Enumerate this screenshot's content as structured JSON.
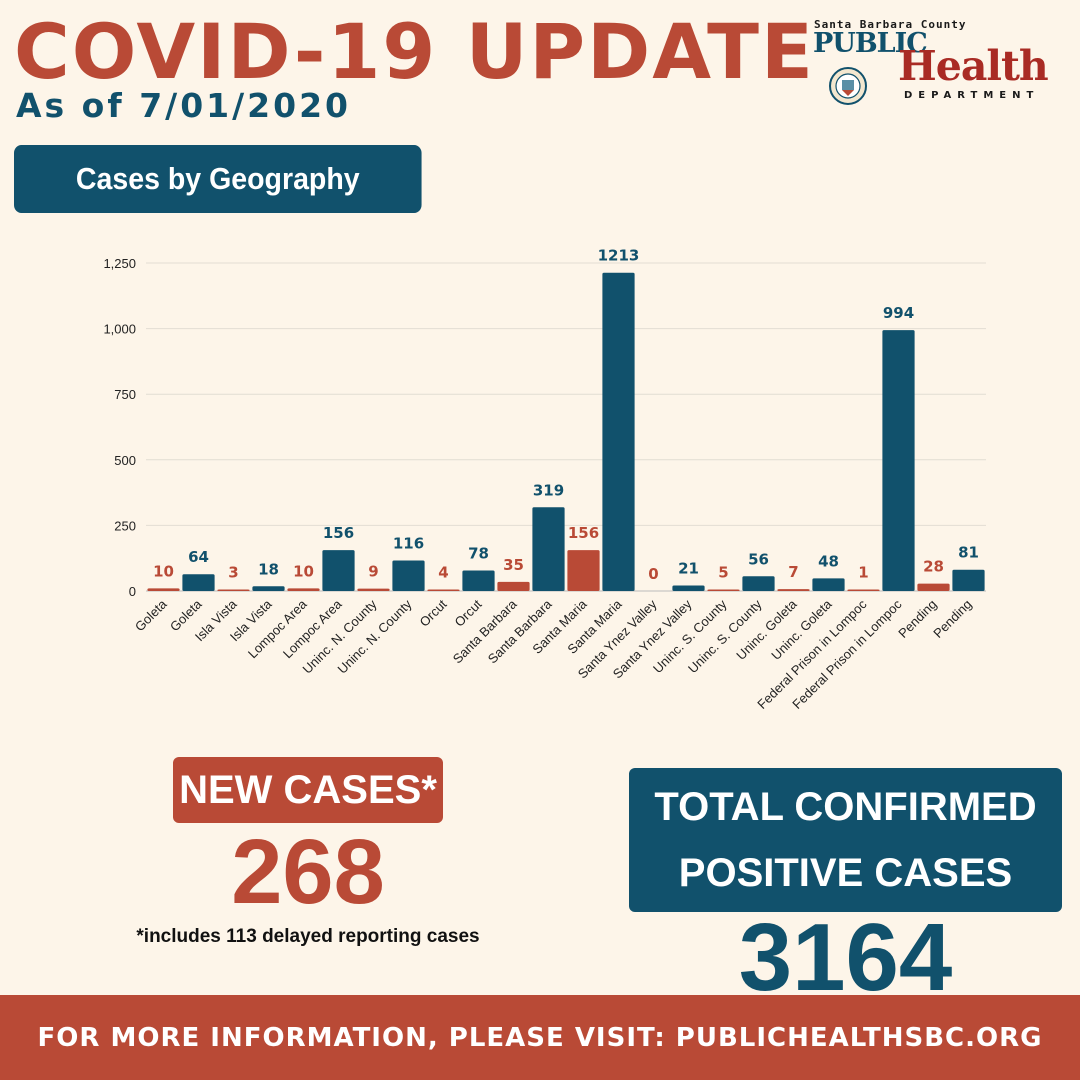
{
  "header": {
    "title": "COVID-19 UPDATE",
    "subtitle": "As of 7/01/2020"
  },
  "logo": {
    "county": "Santa Barbara County",
    "public": "PUBLIC",
    "health": "Health",
    "department": "DEPARTMENT"
  },
  "section_label": "Cases by Geography",
  "chart_data": {
    "type": "bar",
    "title": "",
    "xlabel": "",
    "ylabel": "",
    "ylim": [
      0,
      1250
    ],
    "yticks": [
      0,
      250,
      500,
      750,
      1000,
      1250
    ],
    "ytick_labels": [
      "0",
      "250",
      "500",
      "750",
      "1,000",
      "1,250"
    ],
    "grid": true,
    "series_colors": {
      "new": "#b94a36",
      "total": "#11516c"
    },
    "categories": [
      "Goleta",
      "Goleta",
      "Isla Vista",
      "Isla Vista",
      "Lompoc Area",
      "Lompoc Area",
      "Uninc. N. County",
      "Uninc. N. County",
      "Orcut",
      "Orcut",
      "Santa Barbara",
      "Santa Barbara",
      "Santa Maria",
      "Santa Maria",
      "Santa Ynez Valley",
      "Santa Ynez Valley",
      "Uninc. S. County",
      "Uninc. S. County",
      "Uninc. Goleta",
      "Uninc. Goleta",
      "Federal Prison in Lompoc",
      "Federal Prison in Lompoc",
      "Pending",
      "Pending"
    ],
    "values": [
      10,
      64,
      3,
      18,
      10,
      156,
      9,
      116,
      4,
      78,
      35,
      319,
      156,
      1213,
      0,
      21,
      5,
      56,
      7,
      48,
      1,
      994,
      28,
      81
    ],
    "bar_series": [
      "new",
      "total",
      "new",
      "total",
      "new",
      "total",
      "new",
      "total",
      "new",
      "total",
      "new",
      "total",
      "new",
      "total",
      "new",
      "total",
      "new",
      "total",
      "new",
      "total",
      "new",
      "total",
      "new",
      "total"
    ]
  },
  "new_cases": {
    "label": "NEW CASES*",
    "value": "268",
    "footnote": "*includes 113 delayed reporting cases"
  },
  "total_cases": {
    "label_line1": "TOTAL CONFIRMED",
    "label_line2": "POSITIVE CASES",
    "value": "3164"
  },
  "footer": "FOR MORE INFORMATION, PLEASE VISIT: PUBLICHEALTHSBC.ORG"
}
